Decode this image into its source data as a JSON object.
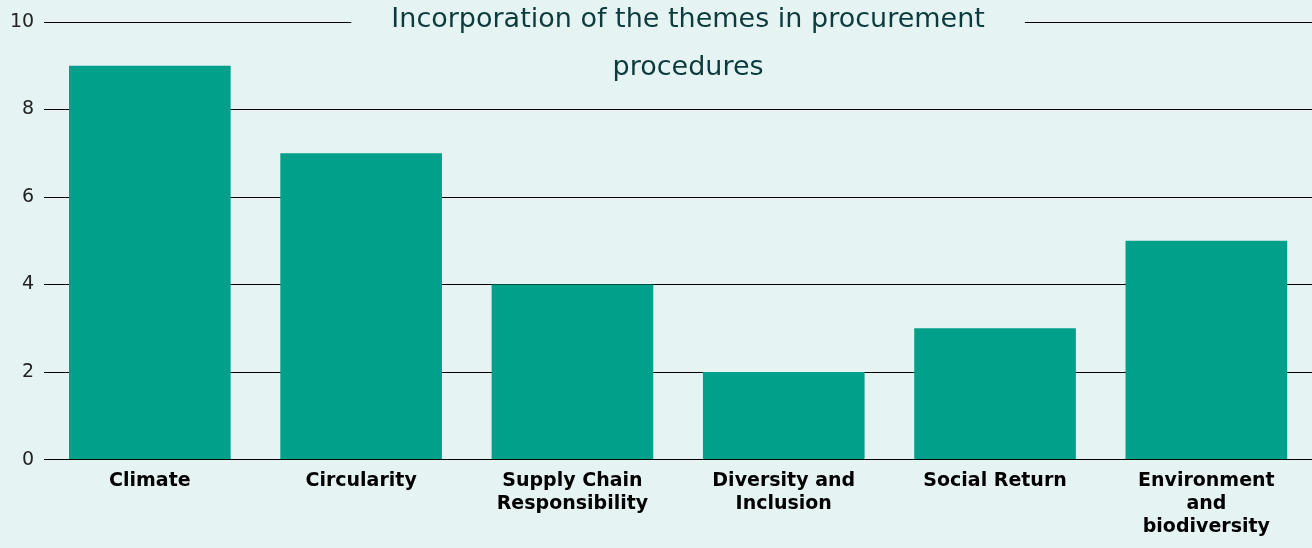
{
  "chart_data": {
    "type": "bar",
    "title": "Incorporation of the themes in procurement procedures",
    "categories": [
      "Climate",
      "Circularity",
      "Supply Chain Responsibility",
      "Diversity and Inclusion",
      "Social Return",
      "Environment and biodiversity"
    ],
    "values": [
      9,
      7,
      4,
      2,
      3,
      5
    ],
    "color": "#00a08a",
    "ylim": [
      0,
      10
    ],
    "yticks": [
      0,
      2,
      4,
      6,
      8,
      10
    ],
    "grid": "y"
  }
}
